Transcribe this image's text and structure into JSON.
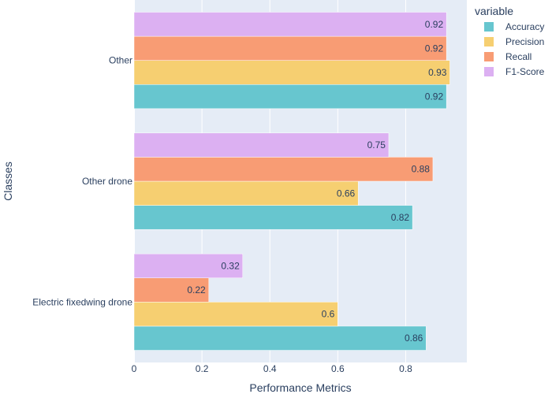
{
  "chart_data": {
    "type": "bar",
    "orientation": "horizontal",
    "categories": [
      "Electric fixedwing drone",
      "Other drone",
      "Other"
    ],
    "series": [
      {
        "name": "Accuracy",
        "color": "#67c6cf",
        "values": [
          0.86,
          0.82,
          0.92
        ],
        "labels": [
          "0.86",
          "0.82",
          "0.92"
        ]
      },
      {
        "name": "Precision",
        "color": "#f6cf71",
        "values": [
          0.6,
          0.66,
          0.93
        ],
        "labels": [
          "0.6",
          "0.66",
          "0.93"
        ]
      },
      {
        "name": "Recall",
        "color": "#f89c74",
        "values": [
          0.22,
          0.88,
          0.92
        ],
        "labels": [
          "0.22",
          "0.88",
          "0.92"
        ]
      },
      {
        "name": "F1-Score",
        "color": "#dcb0f2",
        "values": [
          0.32,
          0.75,
          0.92
        ],
        "labels": [
          "0.32",
          "0.75",
          "0.92"
        ]
      }
    ],
    "xlabel": "Performance Metrics",
    "ylabel": "Classes",
    "xlim": [
      0,
      0.98
    ],
    "xticks": [
      0,
      0.2,
      0.4,
      0.6,
      0.8
    ],
    "xtick_labels": [
      "0",
      "0.2",
      "0.4",
      "0.6",
      "0.8"
    ],
    "legend_title": "variable",
    "legend_position": "top-right",
    "grid": true,
    "plot_background": "#e5ecf6",
    "grid_color": "#ffffff",
    "text_color": "#2a3f5f"
  }
}
